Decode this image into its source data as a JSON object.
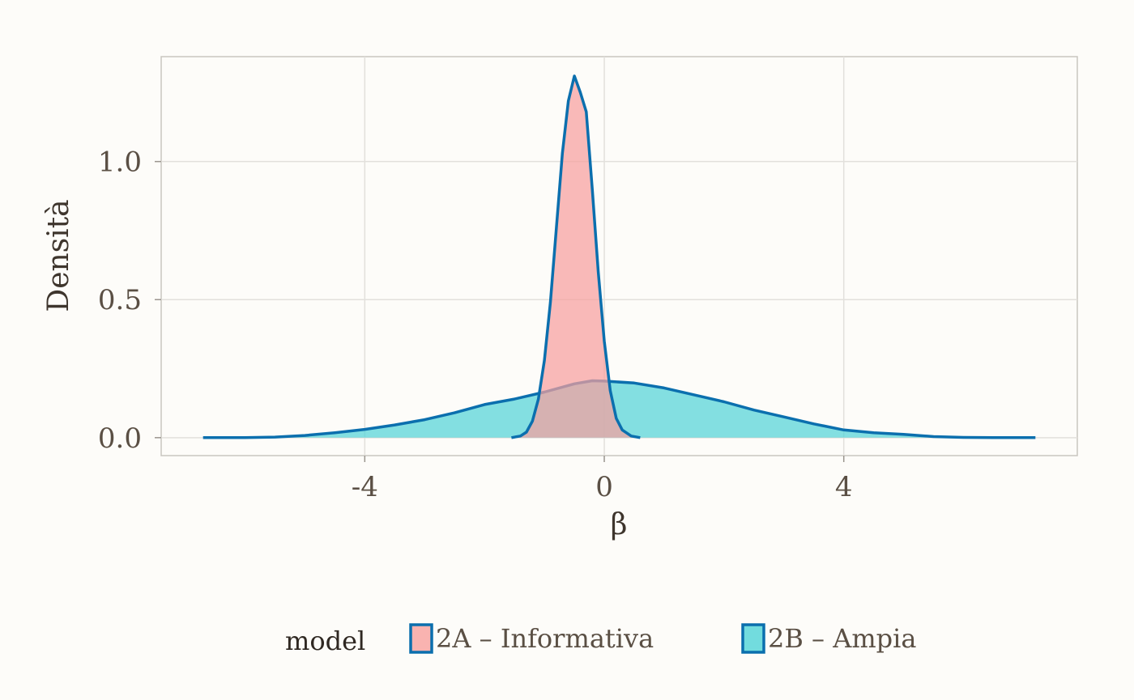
{
  "chart_data": {
    "type": "area",
    "title": "",
    "xlabel": "β",
    "ylabel": "Densità",
    "xlim": [
      -7.4,
      7.9
    ],
    "ylim": [
      -0.065,
      1.38
    ],
    "x_ticks": [
      -4,
      0,
      4
    ],
    "x_tick_labels": [
      "-4",
      "0",
      "4"
    ],
    "y_ticks": [
      0.0,
      0.5,
      1.0
    ],
    "y_tick_labels": [
      "0.0",
      "0.5",
      "1.0"
    ],
    "grid": true,
    "legend": {
      "title": "model",
      "position": "bottom"
    },
    "line_color": "#0b6fae",
    "series": [
      {
        "name": "2A – Informativa",
        "fill": "#f7a09e",
        "points": [
          [
            -1.55,
            0.0
          ],
          [
            -1.4,
            0.006
          ],
          [
            -1.3,
            0.02
          ],
          [
            -1.2,
            0.06
          ],
          [
            -1.1,
            0.14
          ],
          [
            -1.0,
            0.28
          ],
          [
            -0.9,
            0.49
          ],
          [
            -0.8,
            0.76
          ],
          [
            -0.7,
            1.03
          ],
          [
            -0.6,
            1.22
          ],
          [
            -0.5,
            1.31
          ],
          [
            -0.4,
            1.25
          ],
          [
            -0.3,
            1.18
          ],
          [
            -0.2,
            0.9
          ],
          [
            -0.1,
            0.6
          ],
          [
            0.0,
            0.35
          ],
          [
            0.1,
            0.17
          ],
          [
            0.2,
            0.07
          ],
          [
            0.3,
            0.028
          ],
          [
            0.45,
            0.006
          ],
          [
            0.6,
            0.0
          ]
        ]
      },
      {
        "name": "2B – Ampia",
        "fill": "#4fd3d7",
        "points": [
          [
            -6.7,
            0.0
          ],
          [
            -6.0,
            0.0
          ],
          [
            -5.5,
            0.002
          ],
          [
            -5.0,
            0.008
          ],
          [
            -4.5,
            0.018
          ],
          [
            -4.0,
            0.03
          ],
          [
            -3.5,
            0.046
          ],
          [
            -3.0,
            0.065
          ],
          [
            -2.5,
            0.09
          ],
          [
            -2.0,
            0.12
          ],
          [
            -1.5,
            0.14
          ],
          [
            -1.0,
            0.165
          ],
          [
            -0.5,
            0.195
          ],
          [
            -0.2,
            0.206
          ],
          [
            0.0,
            0.205
          ],
          [
            0.5,
            0.198
          ],
          [
            1.0,
            0.18
          ],
          [
            1.5,
            0.155
          ],
          [
            2.0,
            0.13
          ],
          [
            2.5,
            0.1
          ],
          [
            3.0,
            0.075
          ],
          [
            3.5,
            0.05
          ],
          [
            4.0,
            0.028
          ],
          [
            4.5,
            0.018
          ],
          [
            5.0,
            0.012
          ],
          [
            5.5,
            0.004
          ],
          [
            6.0,
            0.001
          ],
          [
            6.5,
            0.0
          ],
          [
            7.2,
            0.0
          ]
        ]
      }
    ]
  }
}
